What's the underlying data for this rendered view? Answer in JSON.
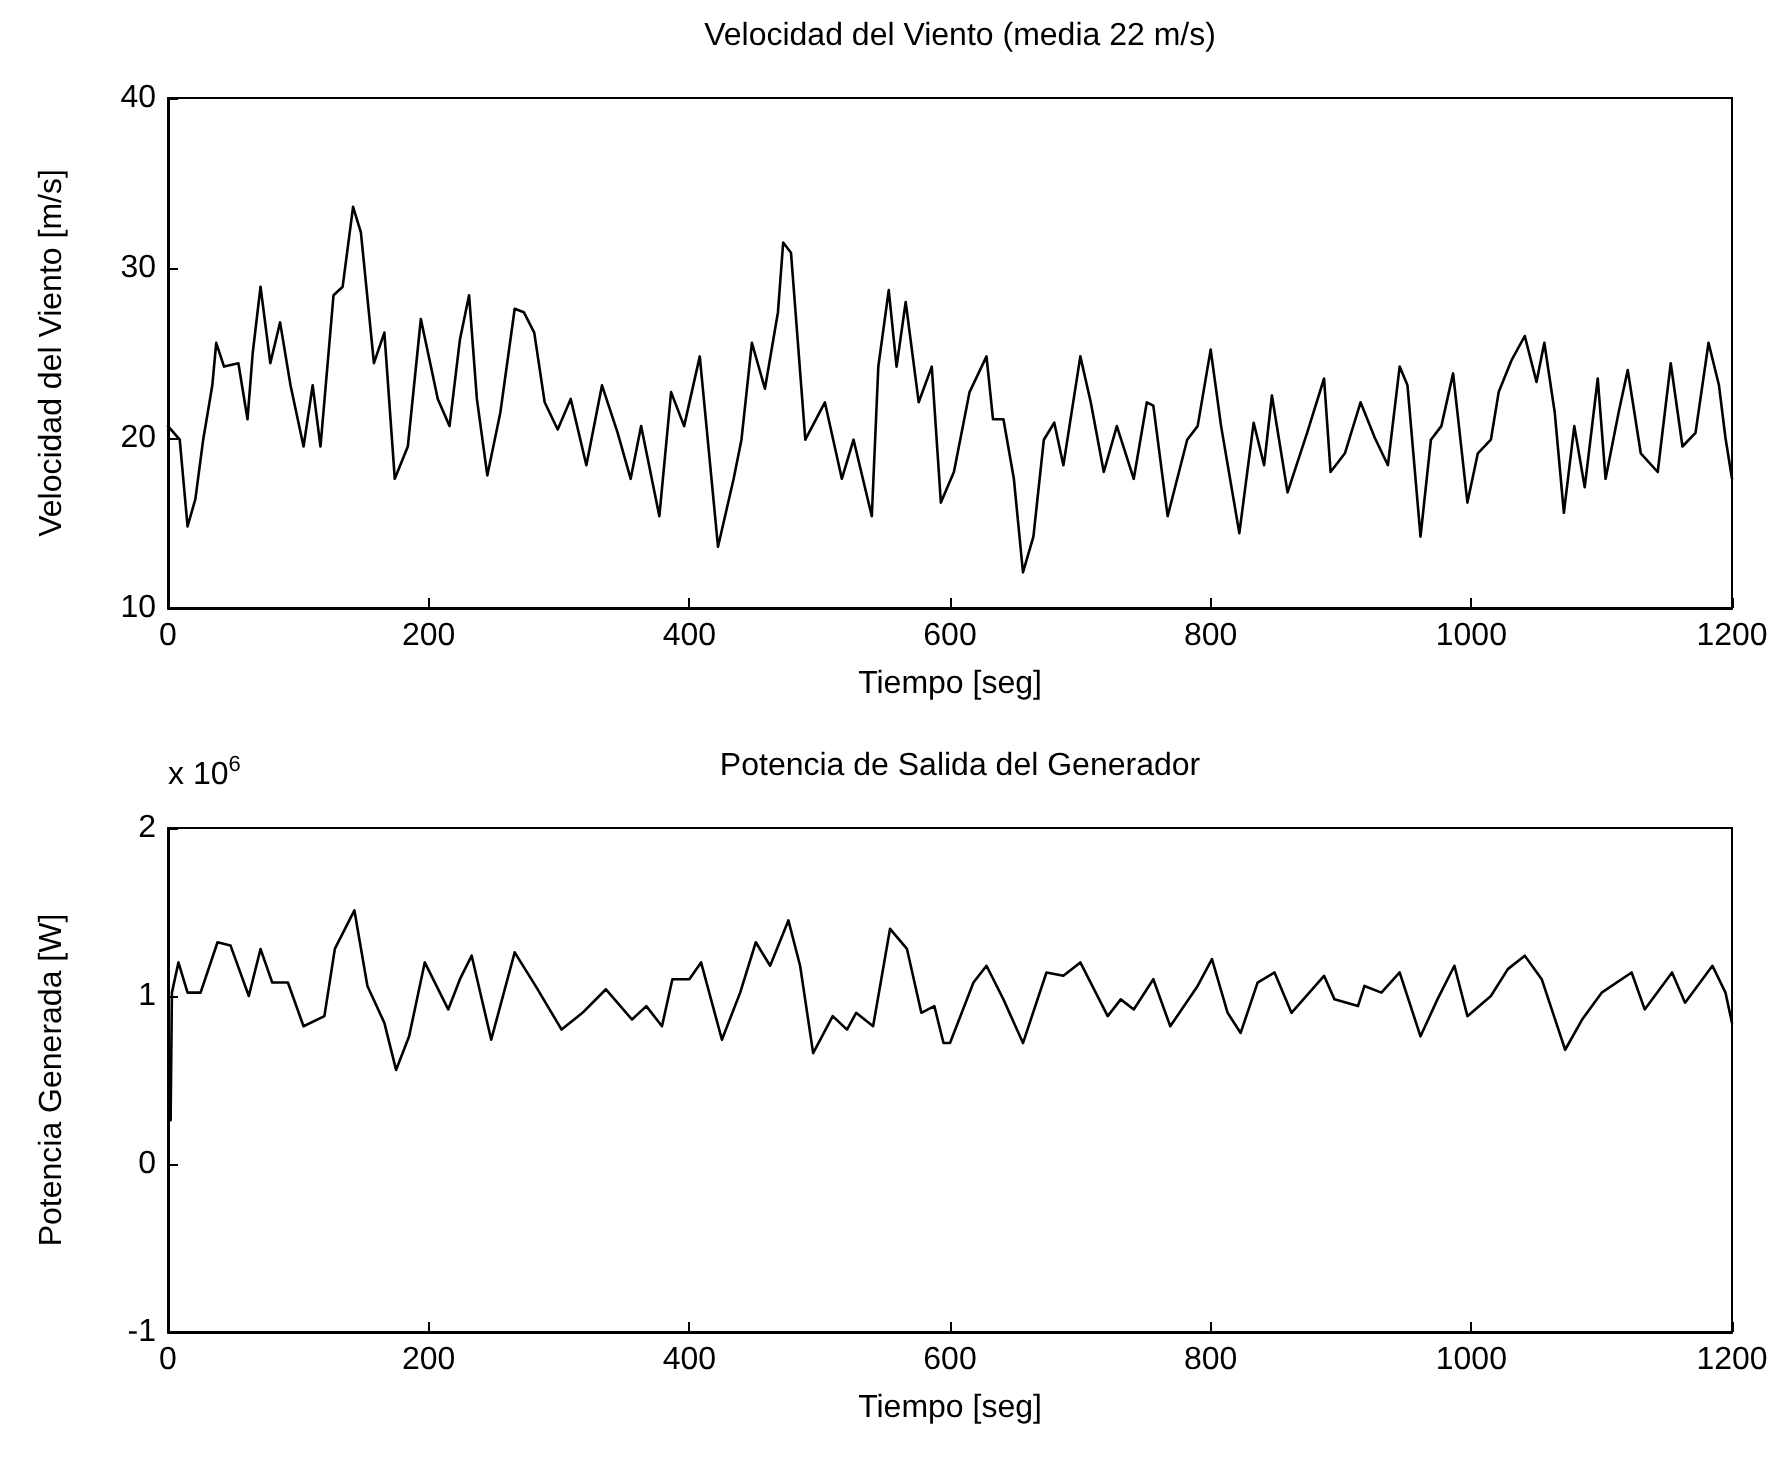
{
  "chart_data": [
    {
      "type": "line",
      "title": "Velocidad del Viento (media 22 m/s)",
      "xlabel": "Tiempo [seg]",
      "ylabel": "Velocidad del Viento [m/s]",
      "color": "#000000",
      "marker": "none",
      "line_style": "solid",
      "x": [
        0,
        9,
        15,
        21,
        27,
        34,
        37,
        43,
        54,
        61,
        65,
        71,
        78.5,
        86,
        94,
        104,
        111,
        117,
        127,
        134,
        142,
        148,
        158,
        166,
        174,
        184,
        194,
        207,
        216,
        224,
        231,
        237,
        245,
        255,
        266,
        273,
        281,
        289,
        299,
        309,
        321,
        333,
        345,
        355,
        363,
        377,
        386,
        396,
        408,
        422,
        434,
        440,
        448,
        458,
        468,
        472,
        478,
        489,
        504,
        517,
        526,
        540,
        545,
        553,
        559,
        566,
        576,
        586,
        593,
        603,
        615,
        628,
        633,
        641,
        649,
        656,
        664,
        672,
        680,
        687,
        700,
        708,
        718,
        728,
        741,
        751,
        756,
        767,
        782,
        790,
        800,
        808,
        822,
        833,
        841,
        847,
        859,
        874,
        887,
        892,
        903,
        915,
        926,
        936,
        945,
        951,
        961,
        969,
        977,
        986,
        997,
        1005,
        1015,
        1021,
        1031,
        1041,
        1050,
        1056,
        1064,
        1071,
        1079,
        1087,
        1097,
        1103,
        1113,
        1120,
        1130,
        1143,
        1153,
        1162,
        1172,
        1182,
        1190,
        1195,
        1200
      ],
      "values": [
        20.7,
        19.9,
        14.8,
        16.4,
        19.9,
        23.1,
        25.6,
        24.2,
        24.4,
        21.1,
        25.0,
        28.9,
        24.4,
        26.8,
        23.1,
        19.5,
        23.1,
        19.5,
        28.4,
        28.9,
        33.6,
        32.1,
        24.4,
        26.2,
        17.6,
        19.5,
        27.0,
        22.3,
        20.7,
        25.8,
        28.4,
        22.3,
        17.8,
        21.5,
        27.6,
        27.4,
        26.2,
        22.1,
        20.5,
        22.3,
        18.4,
        23.1,
        20.3,
        17.6,
        20.7,
        15.4,
        22.7,
        20.7,
        24.8,
        13.6,
        17.6,
        19.9,
        25.6,
        22.9,
        27.4,
        31.5,
        30.9,
        19.9,
        22.1,
        17.6,
        19.9,
        15.4,
        24.2,
        28.7,
        24.2,
        28.0,
        22.1,
        24.2,
        16.2,
        18.0,
        22.7,
        24.8,
        21.1,
        21.1,
        17.6,
        12.1,
        14.2,
        19.9,
        20.9,
        18.4,
        24.8,
        22.1,
        18.0,
        20.7,
        17.6,
        22.1,
        21.9,
        15.4,
        19.9,
        20.7,
        25.2,
        20.7,
        14.4,
        20.9,
        18.4,
        22.5,
        16.8,
        20.3,
        23.5,
        18.0,
        19.1,
        22.1,
        20.0,
        18.4,
        24.2,
        23.1,
        14.2,
        19.9,
        20.7,
        23.8,
        16.2,
        19.1,
        19.9,
        22.7,
        24.6,
        26.0,
        23.3,
        25.6,
        21.5,
        15.6,
        20.7,
        17.1,
        23.5,
        17.6,
        21.5,
        24.0,
        19.1,
        18.0,
        24.4,
        19.5,
        20.3,
        25.6,
        23.1,
        20.0,
        17.6
      ],
      "xlim": [
        0,
        1200
      ],
      "xticks": [
        0,
        200,
        400,
        600,
        800,
        1000,
        1200
      ],
      "ylim": [
        10,
        40
      ],
      "yticks": [
        10,
        20,
        30,
        40
      ]
    },
    {
      "type": "line",
      "title": "Potencia de Salida del Generador",
      "xlabel": "Tiempo [seg]",
      "ylabel": "Potencia Generada [W]",
      "color": "#000000",
      "marker": "none",
      "line_style": "solid",
      "annotations": [
        "x 10$^{6}$"
      ],
      "x": [
        2,
        3,
        8,
        15,
        25,
        38,
        48,
        62,
        71,
        80,
        92,
        104,
        120,
        128,
        143,
        153,
        166,
        175,
        185,
        197,
        215,
        224,
        233,
        248,
        266,
        282,
        302,
        318,
        336,
        356,
        367,
        379,
        387,
        400,
        409,
        425,
        439,
        451,
        462,
        476,
        485,
        495,
        510,
        521,
        528,
        541,
        554,
        567,
        578,
        588,
        595,
        600,
        618,
        628,
        641,
        656,
        674,
        687,
        700,
        721,
        731,
        741,
        756,
        769,
        790,
        801,
        813,
        823,
        836,
        849,
        862,
        887,
        895,
        913,
        918,
        931,
        945,
        961,
        974,
        987,
        997,
        1015,
        1028,
        1041,
        1054,
        1072,
        1085,
        1100,
        1123,
        1133,
        1154,
        1164,
        1185,
        1195,
        1200
      ],
      "values": [
        0.26,
        1.02,
        1.2,
        1.02,
        1.02,
        1.32,
        1.3,
        1.0,
        1.28,
        1.08,
        1.08,
        0.82,
        0.88,
        1.28,
        1.51,
        1.06,
        0.84,
        0.56,
        0.76,
        1.2,
        0.92,
        1.1,
        1.24,
        0.74,
        1.26,
        1.06,
        0.8,
        0.9,
        1.04,
        0.86,
        0.94,
        0.82,
        1.1,
        1.1,
        1.2,
        0.74,
        1.02,
        1.32,
        1.18,
        1.45,
        1.18,
        0.66,
        0.88,
        0.8,
        0.9,
        0.82,
        1.4,
        1.28,
        0.9,
        0.94,
        0.72,
        0.72,
        1.08,
        1.18,
        0.98,
        0.72,
        1.14,
        1.12,
        1.2,
        0.88,
        0.98,
        0.92,
        1.1,
        0.82,
        1.06,
        1.22,
        0.9,
        0.78,
        1.08,
        1.14,
        0.9,
        1.12,
        0.98,
        0.94,
        1.06,
        1.02,
        1.14,
        0.76,
        0.98,
        1.18,
        0.88,
        1.0,
        1.16,
        1.24,
        1.1,
        0.68,
        0.86,
        1.02,
        1.14,
        0.92,
        1.14,
        0.96,
        1.18,
        1.02,
        0.84
      ],
      "xlim": [
        0,
        1200
      ],
      "xticks": [
        0,
        200,
        400,
        600,
        800,
        1000,
        1200
      ],
      "ylim": [
        -1,
        2
      ],
      "yticks": [
        -1,
        0,
        1,
        2
      ]
    }
  ]
}
